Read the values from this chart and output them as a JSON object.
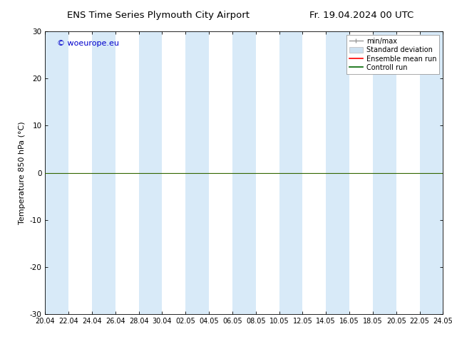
{
  "title_left": "ENS Time Series Plymouth City Airport",
  "title_right": "Fr. 19.04.2024 00 UTC",
  "ylabel": "Temperature 850 hPa (°C)",
  "ylim": [
    -30,
    30
  ],
  "yticks": [
    -30,
    -20,
    -10,
    0,
    10,
    20,
    30
  ],
  "watermark": "© woeurope.eu",
  "watermark_color": "#0000cc",
  "legend_labels": [
    "min/max",
    "Standard deviation",
    "Ensemble mean run",
    "Controll run"
  ],
  "bg_color": "#ffffff",
  "band_color": "#d8eaf8",
  "zero_line_color": "#336600",
  "x_tick_labels": [
    "20.04",
    "22.04",
    "24.04",
    "26.04",
    "28.04",
    "30.04",
    "02.05",
    "04.05",
    "06.05",
    "08.05",
    "10.05",
    "12.05",
    "14.05",
    "16.05",
    "18.05",
    "20.05",
    "22.05",
    "24.05"
  ],
  "shaded_ranges": [
    [
      0,
      2
    ],
    [
      4,
      6
    ],
    [
      8,
      10
    ],
    [
      12,
      14
    ],
    [
      16,
      18
    ],
    [
      20,
      22
    ],
    [
      24,
      26
    ],
    [
      28,
      30
    ],
    [
      32,
      34
    ]
  ],
  "num_ticks": 18
}
